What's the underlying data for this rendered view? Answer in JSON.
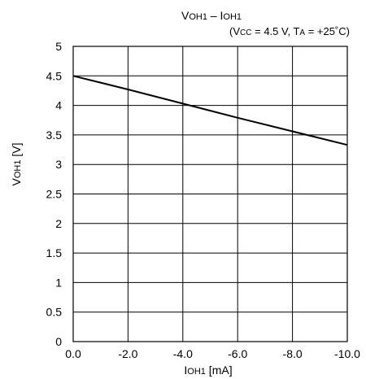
{
  "chart_data": {
    "type": "line",
    "title": "VOH1 – IOH1",
    "subtitle": "(Vcc = 4.5 V, TA = +25˚C)",
    "xlabel": "IOH1 [mA]",
    "ylabel": "VOH1 [V]",
    "xlim": [
      0,
      -10
    ],
    "ylim": [
      0,
      5
    ],
    "x_ticks": [
      0,
      -2,
      -4,
      -6,
      -8,
      -10
    ],
    "x_tick_labels": [
      "0.0",
      "-2.0",
      "-4.0",
      "-6.0",
      "-8.0",
      "-10.0"
    ],
    "y_ticks": [
      0,
      0.5,
      1,
      1.5,
      2,
      2.5,
      3,
      3.5,
      4,
      4.5,
      5
    ],
    "y_tick_labels": [
      "0",
      "0.5",
      "1",
      "1.5",
      "2",
      "2.5",
      "3",
      "3.5",
      "4",
      "4.5",
      "5"
    ],
    "grid": true,
    "series": [
      {
        "x": [
          0,
          -2,
          -4,
          -6,
          -8,
          -10
        ],
        "y": [
          4.5,
          4.27,
          4.03,
          3.79,
          3.56,
          3.33
        ]
      }
    ],
    "line_color": "#000000"
  }
}
